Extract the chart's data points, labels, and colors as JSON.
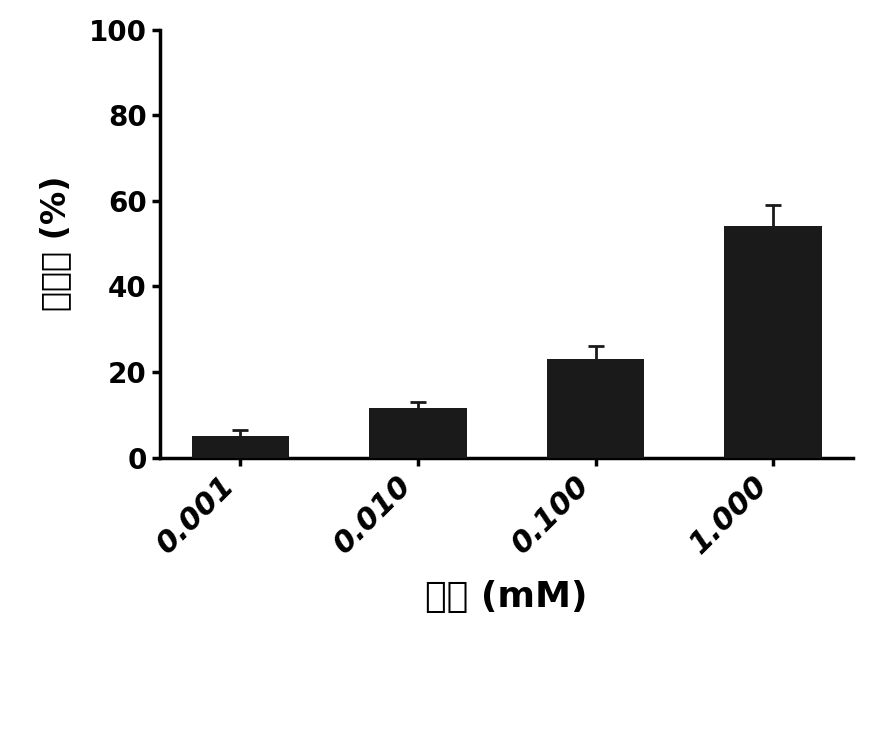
{
  "categories": [
    "0.001",
    "0.010",
    "0.100",
    "1.000"
  ],
  "values": [
    5.0,
    11.5,
    23.0,
    54.0
  ],
  "errors": [
    1.5,
    1.5,
    3.0,
    5.0
  ],
  "bar_color": "#1a1a1a",
  "bar_width": 0.55,
  "ylabel": "抑制率 (%)",
  "xlabel": "浓度 (mM)",
  "ylim": [
    0,
    100
  ],
  "yticks": [
    0,
    20,
    40,
    60,
    80,
    100
  ],
  "ylabel_fontsize": 24,
  "xlabel_fontsize": 26,
  "tick_fontsize": 20,
  "xtick_fontsize": 22,
  "background_color": "#ffffff",
  "error_capsize": 6,
  "error_linewidth": 2.0,
  "error_color": "#1a1a1a"
}
